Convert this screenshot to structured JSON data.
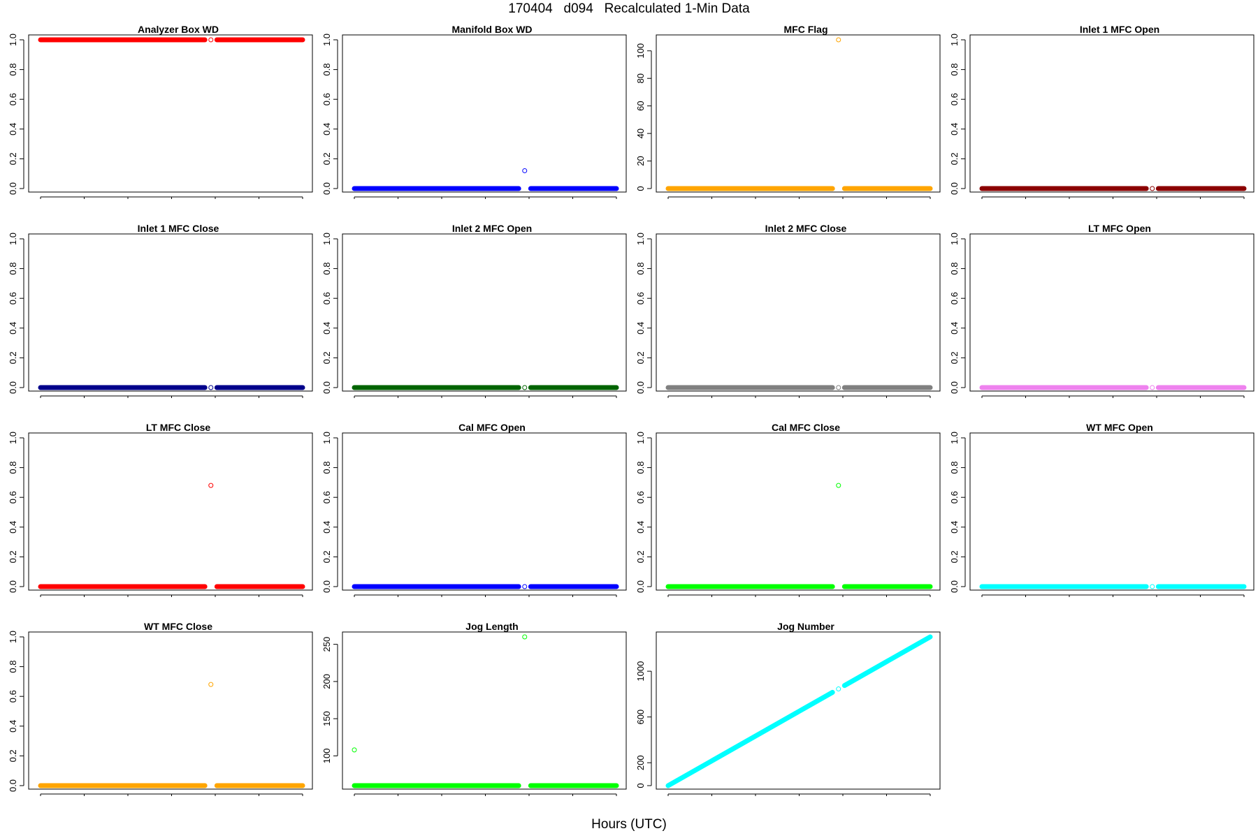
{
  "figure": {
    "title": "170404   d094   Recalculated 1-Min Data",
    "xlabel": "Hours (UTC)"
  },
  "chart_data": [
    {
      "type": "scatter",
      "title": "Analyzer Box WD",
      "color": "#ff0000",
      "level": 1,
      "gap_value": 1,
      "ylim": [
        0,
        1
      ],
      "yticks": [
        0,
        0.2,
        0.4,
        0.6,
        0.8,
        1
      ],
      "ytick_labels": [
        "0.0",
        "0.2",
        "0.4",
        "0.6",
        "0.8",
        "1.0"
      ],
      "xticks": [
        0,
        4,
        8,
        12,
        16,
        20,
        24
      ],
      "x_range": [
        0,
        24
      ],
      "gap_x": 15.6
    },
    {
      "type": "scatter",
      "title": "Manifold Box WD",
      "color": "#0000ff",
      "level": 0,
      "gap_value": 0.12,
      "ylim": [
        0,
        1
      ],
      "yticks": [
        0,
        0.2,
        0.4,
        0.6,
        0.8,
        1
      ],
      "ytick_labels": [
        "0.0",
        "0.2",
        "0.4",
        "0.6",
        "0.8",
        "1.0"
      ],
      "xticks": [
        0,
        4,
        8,
        12,
        16,
        20,
        24
      ],
      "x_range": [
        0,
        24
      ],
      "gap_x": 15.6
    },
    {
      "type": "scatter",
      "title": "MFC Flag",
      "color": "#ffa500",
      "level": 0,
      "gap_value": 108,
      "ylim": [
        0,
        108
      ],
      "yticks": [
        0,
        20,
        40,
        60,
        80,
        100
      ],
      "ytick_labels": [
        "0",
        "20",
        "40",
        "60",
        "80",
        "100"
      ],
      "xticks": [
        0,
        4,
        8,
        12,
        16,
        20,
        24
      ],
      "x_range": [
        0,
        24
      ],
      "gap_x": 15.6
    },
    {
      "type": "scatter",
      "title": "Inlet 1 MFC Open",
      "color": "#8b0000",
      "level": 0,
      "gap_value": 0,
      "ylim": [
        0,
        1
      ],
      "yticks": [
        0,
        0.2,
        0.4,
        0.6,
        0.8,
        1
      ],
      "ytick_labels": [
        "0.0",
        "0.2",
        "0.4",
        "0.6",
        "0.8",
        "1.0"
      ],
      "xticks": [
        0,
        4,
        8,
        12,
        16,
        20,
        24
      ],
      "x_range": [
        0,
        24
      ],
      "gap_x": 15.6
    },
    {
      "type": "scatter",
      "title": "Inlet 1 MFC Close",
      "color": "#00008b",
      "level": 0,
      "gap_value": 0,
      "ylim": [
        0,
        1
      ],
      "yticks": [
        0,
        0.2,
        0.4,
        0.6,
        0.8,
        1
      ],
      "ytick_labels": [
        "0.0",
        "0.2",
        "0.4",
        "0.6",
        "0.8",
        "1.0"
      ],
      "xticks": [
        0,
        4,
        8,
        12,
        16,
        20,
        24
      ],
      "x_range": [
        0,
        24
      ],
      "gap_x": 15.6
    },
    {
      "type": "scatter",
      "title": "Inlet 2 MFC Open",
      "color": "#006400",
      "level": 0,
      "gap_value": 0,
      "ylim": [
        0,
        1
      ],
      "yticks": [
        0,
        0.2,
        0.4,
        0.6,
        0.8,
        1
      ],
      "ytick_labels": [
        "0.0",
        "0.2",
        "0.4",
        "0.6",
        "0.8",
        "1.0"
      ],
      "xticks": [
        0,
        4,
        8,
        12,
        16,
        20,
        24
      ],
      "x_range": [
        0,
        24
      ],
      "gap_x": 15.6
    },
    {
      "type": "scatter",
      "title": "Inlet 2 MFC Close",
      "color": "#808080",
      "level": 0,
      "gap_value": 0,
      "ylim": [
        0,
        1
      ],
      "yticks": [
        0,
        0.2,
        0.4,
        0.6,
        0.8,
        1
      ],
      "ytick_labels": [
        "0.0",
        "0.2",
        "0.4",
        "0.6",
        "0.8",
        "1.0"
      ],
      "xticks": [
        0,
        4,
        8,
        12,
        16,
        20,
        24
      ],
      "x_range": [
        0,
        24
      ],
      "gap_x": 15.6
    },
    {
      "type": "scatter",
      "title": "LT MFC Open",
      "color": "#ee82ee",
      "level": 0,
      "gap_value": 0,
      "ylim": [
        0,
        1
      ],
      "yticks": [
        0,
        0.2,
        0.4,
        0.6,
        0.8,
        1
      ],
      "ytick_labels": [
        "0.0",
        "0.2",
        "0.4",
        "0.6",
        "0.8",
        "1.0"
      ],
      "xticks": [
        0,
        4,
        8,
        12,
        16,
        20,
        24
      ],
      "x_range": [
        0,
        24
      ],
      "gap_x": 15.6
    },
    {
      "type": "scatter",
      "title": "LT MFC Close",
      "color": "#ff0000",
      "level": 0,
      "gap_value": 0.68,
      "ylim": [
        0,
        1
      ],
      "yticks": [
        0,
        0.2,
        0.4,
        0.6,
        0.8,
        1
      ],
      "ytick_labels": [
        "0.0",
        "0.2",
        "0.4",
        "0.6",
        "0.8",
        "1.0"
      ],
      "xticks": [
        0,
        4,
        8,
        12,
        16,
        20,
        24
      ],
      "x_range": [
        0,
        24
      ],
      "gap_x": 15.6
    },
    {
      "type": "scatter",
      "title": "Cal MFC Open",
      "color": "#0000ff",
      "level": 0,
      "gap_value": 0,
      "ylim": [
        0,
        1
      ],
      "yticks": [
        0,
        0.2,
        0.4,
        0.6,
        0.8,
        1
      ],
      "ytick_labels": [
        "0.0",
        "0.2",
        "0.4",
        "0.6",
        "0.8",
        "1.0"
      ],
      "xticks": [
        0,
        4,
        8,
        12,
        16,
        20,
        24
      ],
      "x_range": [
        0,
        24
      ],
      "gap_x": 15.6
    },
    {
      "type": "scatter",
      "title": "Cal MFC Close",
      "color": "#00ff00",
      "level": 0,
      "gap_value": 0.68,
      "ylim": [
        0,
        1
      ],
      "yticks": [
        0,
        0.2,
        0.4,
        0.6,
        0.8,
        1
      ],
      "ytick_labels": [
        "0.0",
        "0.2",
        "0.4",
        "0.6",
        "0.8",
        "1.0"
      ],
      "xticks": [
        0,
        4,
        8,
        12,
        16,
        20,
        24
      ],
      "x_range": [
        0,
        24
      ],
      "gap_x": 15.6
    },
    {
      "type": "scatter",
      "title": "WT MFC Open",
      "color": "#00ffff",
      "level": 0,
      "gap_value": 0,
      "ylim": [
        0,
        1
      ],
      "yticks": [
        0,
        0.2,
        0.4,
        0.6,
        0.8,
        1
      ],
      "ytick_labels": [
        "0.0",
        "0.2",
        "0.4",
        "0.6",
        "0.8",
        "1.0"
      ],
      "xticks": [
        0,
        4,
        8,
        12,
        16,
        20,
        24
      ],
      "x_range": [
        0,
        24
      ],
      "gap_x": 15.6
    },
    {
      "type": "scatter",
      "title": "WT MFC Close",
      "color": "#ffa500",
      "level": 0,
      "gap_value": 0.68,
      "ylim": [
        0,
        1
      ],
      "yticks": [
        0,
        0.2,
        0.4,
        0.6,
        0.8,
        1
      ],
      "ytick_labels": [
        "0.0",
        "0.2",
        "0.4",
        "0.6",
        "0.8",
        "1.0"
      ],
      "xticks": [
        0,
        4,
        8,
        12,
        16,
        20,
        24
      ],
      "x_range": [
        0,
        24
      ],
      "gap_x": 15.6
    },
    {
      "type": "scatter",
      "title": "Jog Length",
      "color": "#00ff00",
      "level": 60,
      "gap_value": 260,
      "start_value": 108,
      "ylim": [
        60,
        260
      ],
      "yticks": [
        100,
        150,
        200,
        250
      ],
      "ytick_labels": [
        "100",
        "150",
        "200",
        "250"
      ],
      "xticks": [
        0,
        4,
        8,
        12,
        16,
        20,
        24
      ],
      "x_range": [
        0,
        24
      ],
      "gap_x": 15.6
    },
    {
      "type": "scatter",
      "title": "Jog Number",
      "color": "#00ffff",
      "line_from": [
        0,
        0
      ],
      "line_to": [
        24,
        1300
      ],
      "gap_value": 845,
      "ylim": [
        0,
        1300
      ],
      "yticks": [
        0,
        200,
        600,
        1000
      ],
      "ytick_labels": [
        "0",
        "200",
        "600",
        "1000"
      ],
      "xticks": [
        0,
        4,
        8,
        12,
        16,
        20,
        24
      ],
      "x_range": [
        0,
        24
      ],
      "gap_x": 15.6
    }
  ]
}
